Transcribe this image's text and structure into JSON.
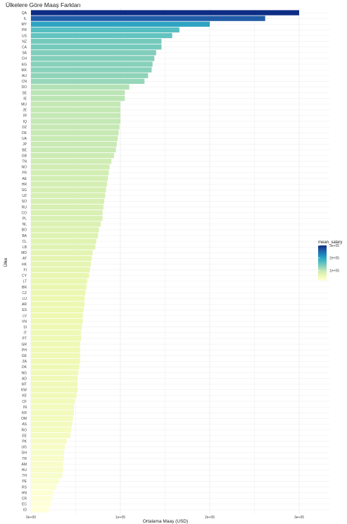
{
  "chart_data": {
    "type": "bar",
    "orientation": "horizontal",
    "title": "Ülkelere Göre Maaş Farkları",
    "xlabel": "Ortalama Maaş (USD)",
    "ylabel": "Ülke",
    "xlim": [
      0,
      300000
    ],
    "x_ticks": [
      "0e+00",
      "1e+05",
      "2e+05",
      "3e+05"
    ],
    "grid": true,
    "legend": {
      "title": "mean_salary",
      "position": "right",
      "ticks": [
        "1e+05",
        "2e+05",
        "3e+05"
      ],
      "colors": [
        "#ffffd9",
        "#edf8b1",
        "#c7e9b4",
        "#7fcdbb",
        "#41b6c4",
        "#1d91c0",
        "#225ea8",
        "#0c2c84"
      ]
    },
    "categories": [
      "QA",
      "IL",
      "MY",
      "PR",
      "US",
      "NZ",
      "CA",
      "SA",
      "CH",
      "EG",
      "MX",
      "AU",
      "CN",
      "DO",
      "SE",
      "IE",
      "MU",
      "JE",
      "IR",
      "IQ",
      "DZ",
      "DE",
      "UA",
      "JP",
      "BE",
      "GB",
      "TN",
      "NO",
      "FR",
      "AE",
      "HR",
      "SG",
      "UZ",
      "SO",
      "RU",
      "CO",
      "PL",
      "NL",
      "BO",
      "BA",
      "CL",
      "LB",
      "MD",
      "AT",
      "HK",
      "FI",
      "CY",
      "LT",
      "BR",
      "CZ",
      "LU",
      "AR",
      "ES",
      "LV",
      "VN",
      "SI",
      "IT",
      "PT",
      "GR",
      "PH",
      "GE",
      "ZA",
      "DK",
      "NG",
      "AD",
      "MT",
      "KW",
      "KE",
      "CF",
      "IN",
      "KR",
      "OM",
      "AS",
      "RO",
      "EE",
      "PK",
      "UG",
      "GH",
      "TR",
      "AM",
      "HU",
      "TH",
      "PE",
      "RS",
      "HN",
      "CR",
      "EC",
      "ID"
    ],
    "values": [
      300000,
      262000,
      200000,
      166000,
      158000,
      146000,
      146000,
      140000,
      138000,
      136000,
      135000,
      131000,
      127000,
      110000,
      105000,
      105000,
      100000,
      100000,
      100000,
      100000,
      99000,
      98000,
      97000,
      96000,
      95000,
      93000,
      90000,
      88000,
      87000,
      86000,
      85000,
      84000,
      83000,
      82000,
      81000,
      80000,
      80000,
      78000,
      76000,
      75000,
      73000,
      72000,
      69000,
      68000,
      67000,
      66000,
      65000,
      63000,
      62000,
      61000,
      60000,
      60000,
      59000,
      58000,
      58000,
      57000,
      56000,
      56000,
      55000,
      55000,
      55000,
      55000,
      54000,
      53000,
      52000,
      52000,
      52000,
      51000,
      49000,
      48000,
      48000,
      47000,
      46000,
      45000,
      44000,
      40000,
      38000,
      37000,
      37000,
      36000,
      36000,
      35000,
      31000,
      28000,
      25000,
      24000,
      22000,
      20000
    ]
  }
}
